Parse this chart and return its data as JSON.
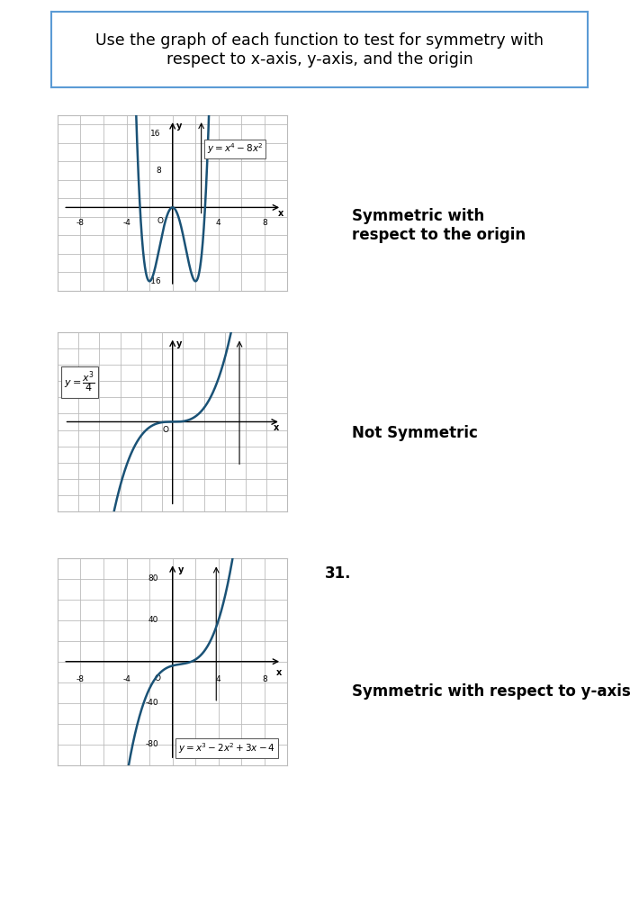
{
  "title": "Use the graph of each function to test for symmetry with\nrespect to x-axis, y-axis, and the origin",
  "title_fontsize": 12.5,
  "bg_color": "#ffffff",
  "border_color": "#5b9bd5",
  "line_color": "#1a5276",
  "grid_color": "#bbbbbb",
  "axis_color": "#000000",
  "graph1": {
    "xlim": [
      -10,
      10
    ],
    "ylim": [
      -18,
      20
    ],
    "xgrid_step": 2,
    "ygrid_step": 4,
    "xticks": [
      -8,
      -4,
      4,
      8
    ],
    "yticks": [
      8,
      16
    ],
    "yticks_neg": [
      -16
    ],
    "result": "Symmetric with\nrespect to the origin",
    "eq_label": "y=x⁴–8x²"
  },
  "graph2": {
    "xlim": [
      -5.5,
      5.5
    ],
    "ylim": [
      -5.5,
      5.5
    ],
    "xgrid_step": 1,
    "ygrid_step": 1,
    "result": "Not Symmetric",
    "eq_label": "y = x³/4"
  },
  "graph3": {
    "xlim": [
      -10,
      10
    ],
    "ylim": [
      -100,
      100
    ],
    "xgrid_step": 2,
    "ygrid_step": 20,
    "xticks": [
      -8,
      -4,
      4,
      8
    ],
    "yticks": [
      40,
      80
    ],
    "yticks_neg": [
      -40,
      -80
    ],
    "result": "Symmetric with respect to y-axis",
    "eq_label": "y = x³− 2x² +3x − 4",
    "number": "31."
  }
}
